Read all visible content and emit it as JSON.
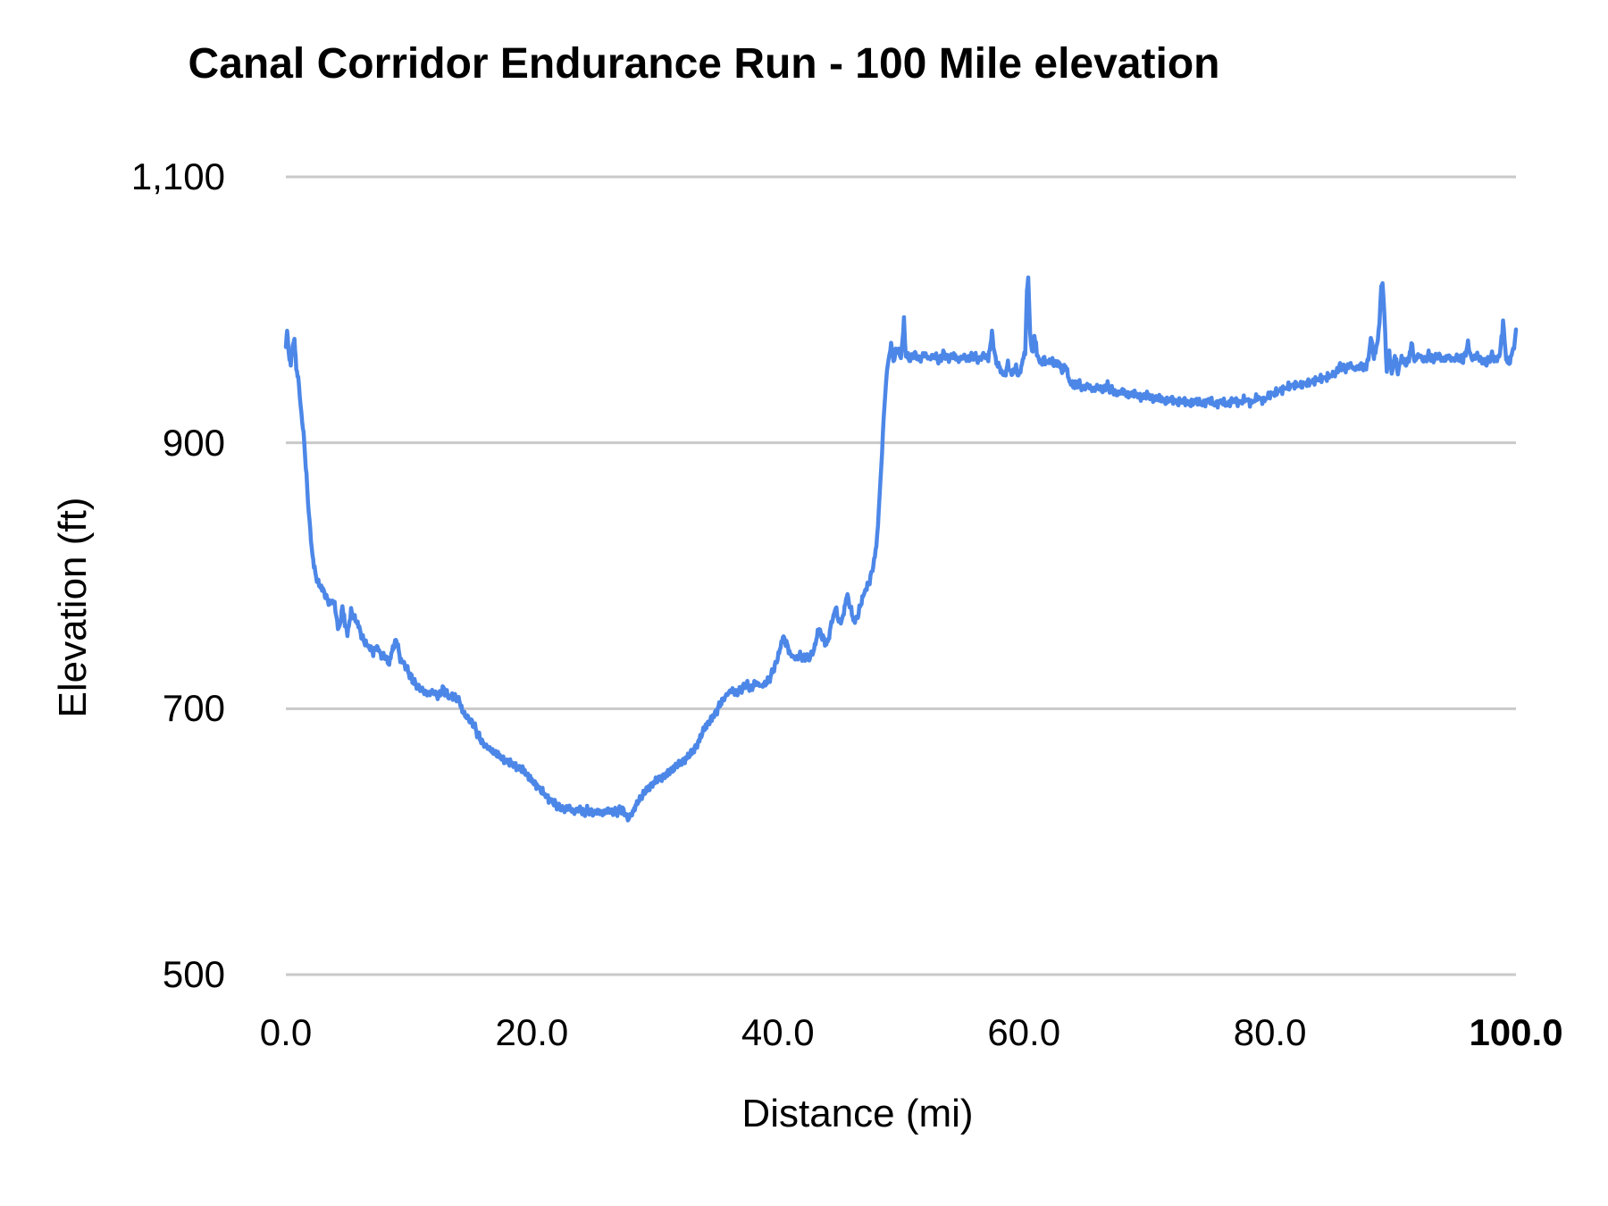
{
  "chart_data": {
    "type": "line",
    "title": "Canal Corridor Endurance Run - 100 Mile elevation",
    "xlabel": "Distance (mi)",
    "ylabel": "Elevation (ft)",
    "xlim": [
      0,
      100
    ],
    "ylim": [
      500,
      1100
    ],
    "x_tick_values": [
      0,
      20,
      40,
      60,
      80,
      100
    ],
    "x_tick_labels": [
      "0.0",
      "20.0",
      "40.0",
      "60.0",
      "80.0",
      "100.0"
    ],
    "y_tick_values": [
      500,
      700,
      900,
      1100
    ],
    "y_tick_labels": [
      "500",
      "700",
      "900",
      "1,100"
    ],
    "grid": "horizontal",
    "legend": "none",
    "line_color": "#4c87e8",
    "grid_color": "#c9c9c9",
    "text_color": "#000000",
    "noise_ft": 2.8,
    "series": [
      {
        "name": "Elevation",
        "points": [
          [
            0.0,
            972
          ],
          [
            0.1,
            983
          ],
          [
            0.25,
            965
          ],
          [
            0.4,
            957
          ],
          [
            0.55,
            974
          ],
          [
            0.7,
            978
          ],
          [
            0.85,
            958
          ],
          [
            1.0,
            949
          ],
          [
            1.2,
            928
          ],
          [
            1.5,
            900
          ],
          [
            1.8,
            856
          ],
          [
            2.1,
            820
          ],
          [
            2.4,
            801
          ],
          [
            2.7,
            793
          ],
          [
            3.0,
            790
          ],
          [
            3.3,
            783
          ],
          [
            3.6,
            779
          ],
          [
            3.9,
            781
          ],
          [
            4.1,
            770
          ],
          [
            4.3,
            758
          ],
          [
            4.6,
            776
          ],
          [
            4.8,
            765
          ],
          [
            5.0,
            756
          ],
          [
            5.3,
            773
          ],
          [
            5.6,
            768
          ],
          [
            5.9,
            763
          ],
          [
            6.2,
            753
          ],
          [
            6.5,
            749
          ],
          [
            6.8,
            746
          ],
          [
            7.1,
            743
          ],
          [
            7.4,
            747
          ],
          [
            7.7,
            741
          ],
          [
            8.0,
            740
          ],
          [
            8.4,
            734
          ],
          [
            8.7,
            746
          ],
          [
            9.0,
            752
          ],
          [
            9.3,
            737
          ],
          [
            9.6,
            734
          ],
          [
            10.0,
            727
          ],
          [
            10.4,
            720
          ],
          [
            10.8,
            716
          ],
          [
            11.2,
            713
          ],
          [
            11.6,
            711
          ],
          [
            12.0,
            713
          ],
          [
            12.4,
            709
          ],
          [
            12.8,
            715
          ],
          [
            13.2,
            709
          ],
          [
            13.7,
            709
          ],
          [
            14.1,
            706
          ],
          [
            14.4,
            697
          ],
          [
            14.8,
            693
          ],
          [
            15.2,
            689
          ],
          [
            15.6,
            681
          ],
          [
            16.0,
            674
          ],
          [
            16.4,
            671
          ],
          [
            16.8,
            668
          ],
          [
            17.3,
            665
          ],
          [
            17.8,
            661
          ],
          [
            18.3,
            659
          ],
          [
            18.8,
            656
          ],
          [
            19.3,
            654
          ],
          [
            19.8,
            648
          ],
          [
            20.3,
            643
          ],
          [
            20.8,
            638
          ],
          [
            21.3,
            633
          ],
          [
            21.8,
            629
          ],
          [
            22.2,
            626
          ],
          [
            22.6,
            624
          ],
          [
            23.0,
            626
          ],
          [
            23.4,
            622
          ],
          [
            23.8,
            625
          ],
          [
            24.2,
            622
          ],
          [
            24.6,
            624
          ],
          [
            25.0,
            621
          ],
          [
            25.4,
            623
          ],
          [
            25.8,
            621
          ],
          [
            26.2,
            624
          ],
          [
            26.6,
            622
          ],
          [
            27.0,
            623
          ],
          [
            27.4,
            624
          ],
          [
            27.8,
            617
          ],
          [
            28.2,
            622
          ],
          [
            28.6,
            630
          ],
          [
            29.0,
            635
          ],
          [
            29.5,
            641
          ],
          [
            30.0,
            645
          ],
          [
            30.5,
            648
          ],
          [
            31.0,
            651
          ],
          [
            31.5,
            655
          ],
          [
            32.0,
            659
          ],
          [
            32.5,
            662
          ],
          [
            33.0,
            667
          ],
          [
            33.5,
            674
          ],
          [
            34.0,
            685
          ],
          [
            34.5,
            691
          ],
          [
            35.0,
            698
          ],
          [
            35.4,
            705
          ],
          [
            35.8,
            710
          ],
          [
            36.2,
            714
          ],
          [
            36.6,
            712
          ],
          [
            37.0,
            714
          ],
          [
            37.4,
            719
          ],
          [
            37.8,
            715
          ],
          [
            38.2,
            720
          ],
          [
            38.6,
            717
          ],
          [
            39.0,
            719
          ],
          [
            39.4,
            724
          ],
          [
            39.8,
            733
          ],
          [
            40.1,
            742
          ],
          [
            40.4,
            754
          ],
          [
            40.7,
            749
          ],
          [
            41.0,
            741
          ],
          [
            41.4,
            738
          ],
          [
            41.8,
            740
          ],
          [
            42.2,
            738
          ],
          [
            42.6,
            739
          ],
          [
            43.0,
            746
          ],
          [
            43.3,
            761
          ],
          [
            43.6,
            754
          ],
          [
            44.0,
            748
          ],
          [
            44.4,
            766
          ],
          [
            44.7,
            776
          ],
          [
            45.0,
            764
          ],
          [
            45.3,
            769
          ],
          [
            45.6,
            786
          ],
          [
            45.9,
            776
          ],
          [
            46.2,
            765
          ],
          [
            46.5,
            770
          ],
          [
            46.8,
            781
          ],
          [
            47.1,
            789
          ],
          [
            47.4,
            795
          ],
          [
            47.7,
            805
          ],
          [
            48.0,
            822
          ],
          [
            48.2,
            848
          ],
          [
            48.4,
            882
          ],
          [
            48.6,
            918
          ],
          [
            48.8,
            948
          ],
          [
            49.0,
            963
          ],
          [
            49.2,
            974
          ],
          [
            49.4,
            962
          ],
          [
            49.7,
            971
          ],
          [
            50.0,
            964
          ],
          [
            50.25,
            991
          ],
          [
            50.4,
            966
          ],
          [
            50.7,
            963
          ],
          [
            51.1,
            967
          ],
          [
            51.5,
            962
          ],
          [
            51.9,
            967
          ],
          [
            52.3,
            963
          ],
          [
            52.7,
            966
          ],
          [
            53.1,
            962
          ],
          [
            53.5,
            967
          ],
          [
            53.9,
            963
          ],
          [
            54.3,
            966
          ],
          [
            54.7,
            962
          ],
          [
            55.1,
            965
          ],
          [
            55.5,
            963
          ],
          [
            55.9,
            966
          ],
          [
            56.3,
            962
          ],
          [
            56.7,
            966
          ],
          [
            57.1,
            963
          ],
          [
            57.4,
            982
          ],
          [
            57.7,
            962
          ],
          [
            58.1,
            955
          ],
          [
            58.4,
            950
          ],
          [
            58.7,
            959
          ],
          [
            59.0,
            951
          ],
          [
            59.3,
            957
          ],
          [
            59.6,
            950
          ],
          [
            59.9,
            962
          ],
          [
            60.1,
            968
          ],
          [
            60.25,
            1015
          ],
          [
            60.35,
            1023
          ],
          [
            60.5,
            984
          ],
          [
            60.65,
            966
          ],
          [
            60.85,
            981
          ],
          [
            61.05,
            968
          ],
          [
            61.3,
            960
          ],
          [
            61.6,
            963
          ],
          [
            61.9,
            960
          ],
          [
            62.2,
            962
          ],
          [
            62.5,
            959
          ],
          [
            62.8,
            961
          ],
          [
            63.1,
            954
          ],
          [
            63.4,
            958
          ],
          [
            63.7,
            946
          ],
          [
            64.0,
            943
          ],
          [
            64.4,
            945
          ],
          [
            64.8,
            941
          ],
          [
            65.2,
            943
          ],
          [
            65.6,
            940
          ],
          [
            66.0,
            942
          ],
          [
            66.4,
            940
          ],
          [
            66.8,
            943
          ],
          [
            67.2,
            939
          ],
          [
            67.6,
            937
          ],
          [
            68.0,
            939
          ],
          [
            68.5,
            936
          ],
          [
            69.0,
            937
          ],
          [
            69.5,
            934
          ],
          [
            70.0,
            936
          ],
          [
            70.5,
            933
          ],
          [
            71.0,
            934
          ],
          [
            71.5,
            931
          ],
          [
            72.0,
            933
          ],
          [
            72.5,
            930
          ],
          [
            73.0,
            932
          ],
          [
            73.5,
            929
          ],
          [
            74.0,
            932
          ],
          [
            74.5,
            929
          ],
          [
            75.0,
            932
          ],
          [
            75.5,
            929
          ],
          [
            76.0,
            931
          ],
          [
            76.5,
            929
          ],
          [
            77.0,
            932
          ],
          [
            77.5,
            930
          ],
          [
            78.0,
            933
          ],
          [
            78.5,
            930
          ],
          [
            79.0,
            934
          ],
          [
            79.5,
            932
          ],
          [
            80.0,
            936
          ],
          [
            80.5,
            938
          ],
          [
            81.0,
            940
          ],
          [
            81.5,
            942
          ],
          [
            82.0,
            944
          ],
          [
            82.5,
            943
          ],
          [
            83.0,
            945
          ],
          [
            83.5,
            946
          ],
          [
            84.0,
            948
          ],
          [
            84.5,
            949
          ],
          [
            85.0,
            951
          ],
          [
            85.4,
            953
          ],
          [
            85.7,
            958
          ],
          [
            86.1,
            955
          ],
          [
            86.5,
            959
          ],
          [
            86.9,
            955
          ],
          [
            87.3,
            958
          ],
          [
            87.7,
            956
          ],
          [
            88.0,
            962
          ],
          [
            88.2,
            980
          ],
          [
            88.45,
            965
          ],
          [
            88.7,
            973
          ],
          [
            88.9,
            990
          ],
          [
            89.05,
            1018
          ],
          [
            89.15,
            1022
          ],
          [
            89.3,
            996
          ],
          [
            89.5,
            953
          ],
          [
            89.7,
            968
          ],
          [
            89.9,
            951
          ],
          [
            90.15,
            966
          ],
          [
            90.4,
            953
          ],
          [
            90.7,
            964
          ],
          [
            91.0,
            959
          ],
          [
            91.3,
            963
          ],
          [
            91.5,
            975
          ],
          [
            91.75,
            962
          ],
          [
            92.1,
            966
          ],
          [
            92.5,
            962
          ],
          [
            92.9,
            966
          ],
          [
            93.3,
            963
          ],
          [
            93.7,
            966
          ],
          [
            94.1,
            962
          ],
          [
            94.5,
            965
          ],
          [
            94.9,
            962
          ],
          [
            95.3,
            965
          ],
          [
            95.7,
            962
          ],
          [
            96.1,
            974
          ],
          [
            96.4,
            963
          ],
          [
            96.8,
            966
          ],
          [
            97.2,
            962
          ],
          [
            97.6,
            960
          ],
          [
            98.0,
            966
          ],
          [
            98.4,
            962
          ],
          [
            98.7,
            967
          ],
          [
            98.95,
            991
          ],
          [
            99.2,
            963
          ],
          [
            99.45,
            960
          ],
          [
            99.7,
            968
          ],
          [
            99.85,
            973
          ],
          [
            100.0,
            984
          ]
        ]
      }
    ]
  }
}
